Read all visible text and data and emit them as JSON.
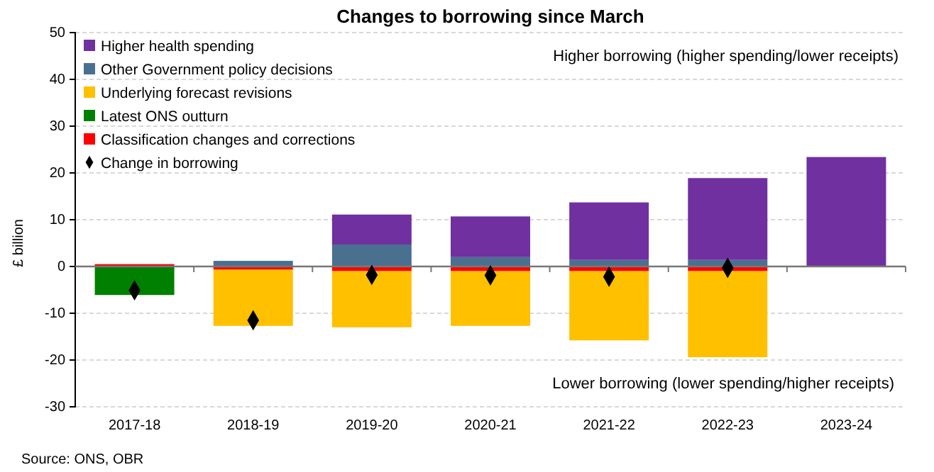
{
  "chart_data": {
    "type": "bar",
    "title": "Changes to borrowing since March",
    "ylabel": "£ billion",
    "stacked": true,
    "categories": [
      "2017-18",
      "2018-19",
      "2019-20",
      "2020-21",
      "2021-22",
      "2022-23",
      "2023-24"
    ],
    "series": [
      {
        "name": "Classification changes and corrections",
        "color": "#ff0000",
        "values": [
          0.5,
          -0.7,
          -1.0,
          -1.0,
          -1.0,
          -1.0,
          null
        ]
      },
      {
        "name": "Latest ONS outturn",
        "color": "#008000",
        "values": [
          -6.1,
          null,
          null,
          null,
          null,
          null,
          null
        ]
      },
      {
        "name": "Underlying forecast revisions",
        "color": "#ffc000",
        "values": [
          null,
          -12.0,
          -12.0,
          -11.7,
          -14.8,
          -18.4,
          null
        ]
      },
      {
        "name": "Other Government policy decisions",
        "color": "#4a7090",
        "values": [
          null,
          1.2,
          4.7,
          2.0,
          1.4,
          1.4,
          null
        ]
      },
      {
        "name": "Higher health spending",
        "color": "#7030a0",
        "values": [
          null,
          null,
          6.4,
          8.7,
          12.3,
          17.5,
          23.4
        ]
      },
      {
        "name": "Change in borrowing",
        "type": "scatter",
        "color": "#000000",
        "marker": "diamond",
        "x": [
          "2017-18",
          "2018-19",
          "2019-20",
          "2020-21",
          "2021-22",
          "2022-23"
        ],
        "values": [
          -5.1,
          -11.5,
          -1.8,
          -1.9,
          -2.2,
          -0.3
        ]
      }
    ],
    "ylim": [
      -30,
      50
    ],
    "yticks": [
      -30,
      -20,
      -10,
      0,
      10,
      20,
      30,
      40,
      50
    ],
    "grid": "y",
    "legend": "top left",
    "annotations": [
      "Higher borrowing (higher spending/lower receipts)",
      "Lower borrowing (lower spending/higher receipts)",
      "Source: ONS, OBR"
    ]
  }
}
